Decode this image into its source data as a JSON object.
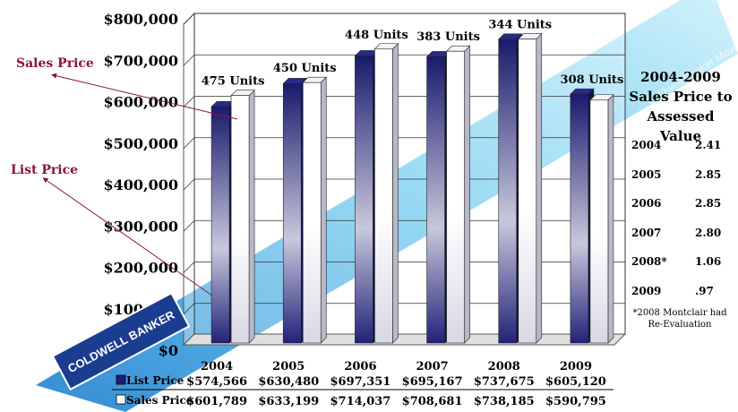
{
  "chart_data": {
    "type": "bar",
    "categories": [
      "2004",
      "2005",
      "2006",
      "2007",
      "2008",
      "2009"
    ],
    "series": [
      {
        "name": "List Price",
        "values": [
          574566,
          630480,
          697351,
          695167,
          737675,
          605120
        ],
        "color": "#1c1c78"
      },
      {
        "name": "Sales Price",
        "values": [
          601789,
          633199,
          714037,
          708681,
          738185,
          590795
        ],
        "color": "#ffffff"
      }
    ],
    "units_labels": [
      "475 Units",
      "450 Units",
      "448 Units",
      "383 Units",
      "344 Units",
      "308 Units"
    ],
    "list_labels": [
      "$574,566",
      "$630,480",
      "$697,351",
      "$695,167",
      "$737,675",
      "$605,120"
    ],
    "sales_labels": [
      "$601,789",
      "$633,199",
      "$714,037",
      "$708,681",
      "$738,185",
      "$590,795"
    ],
    "y_ticks": [
      "$0",
      "$100,000",
      "$200,000",
      "$300,000",
      "$400,000",
      "$500,000",
      "$600,000",
      "$700,000",
      "$800,000"
    ],
    "ylim": [
      0,
      800000
    ],
    "legend_list": "List Price",
    "legend_sales": "Sales Price"
  },
  "annotations": {
    "sales_price": "Sales Price",
    "list_price": "List Price"
  },
  "ratio_table": {
    "title_line1": "2004-2009",
    "title_line2": "Sales Price to",
    "title_line3": "Assessed Value",
    "rows": [
      {
        "year": "2004",
        "value": "2.41"
      },
      {
        "year": "2005",
        "value": "2.85"
      },
      {
        "year": "2006",
        "value": "2.85"
      },
      {
        "year": "2007",
        "value": "2.80"
      },
      {
        "year": "2008*",
        "value": "1.06"
      },
      {
        "year": "2009",
        "value": ".97"
      }
    ],
    "footnote_line1": "*2008 Montclair had",
    "footnote_line2": "Re-Evaluation"
  },
  "watermark": {
    "text": "COLDWELL BANKER",
    "text_top": "Coldwell Banker Moves..."
  }
}
